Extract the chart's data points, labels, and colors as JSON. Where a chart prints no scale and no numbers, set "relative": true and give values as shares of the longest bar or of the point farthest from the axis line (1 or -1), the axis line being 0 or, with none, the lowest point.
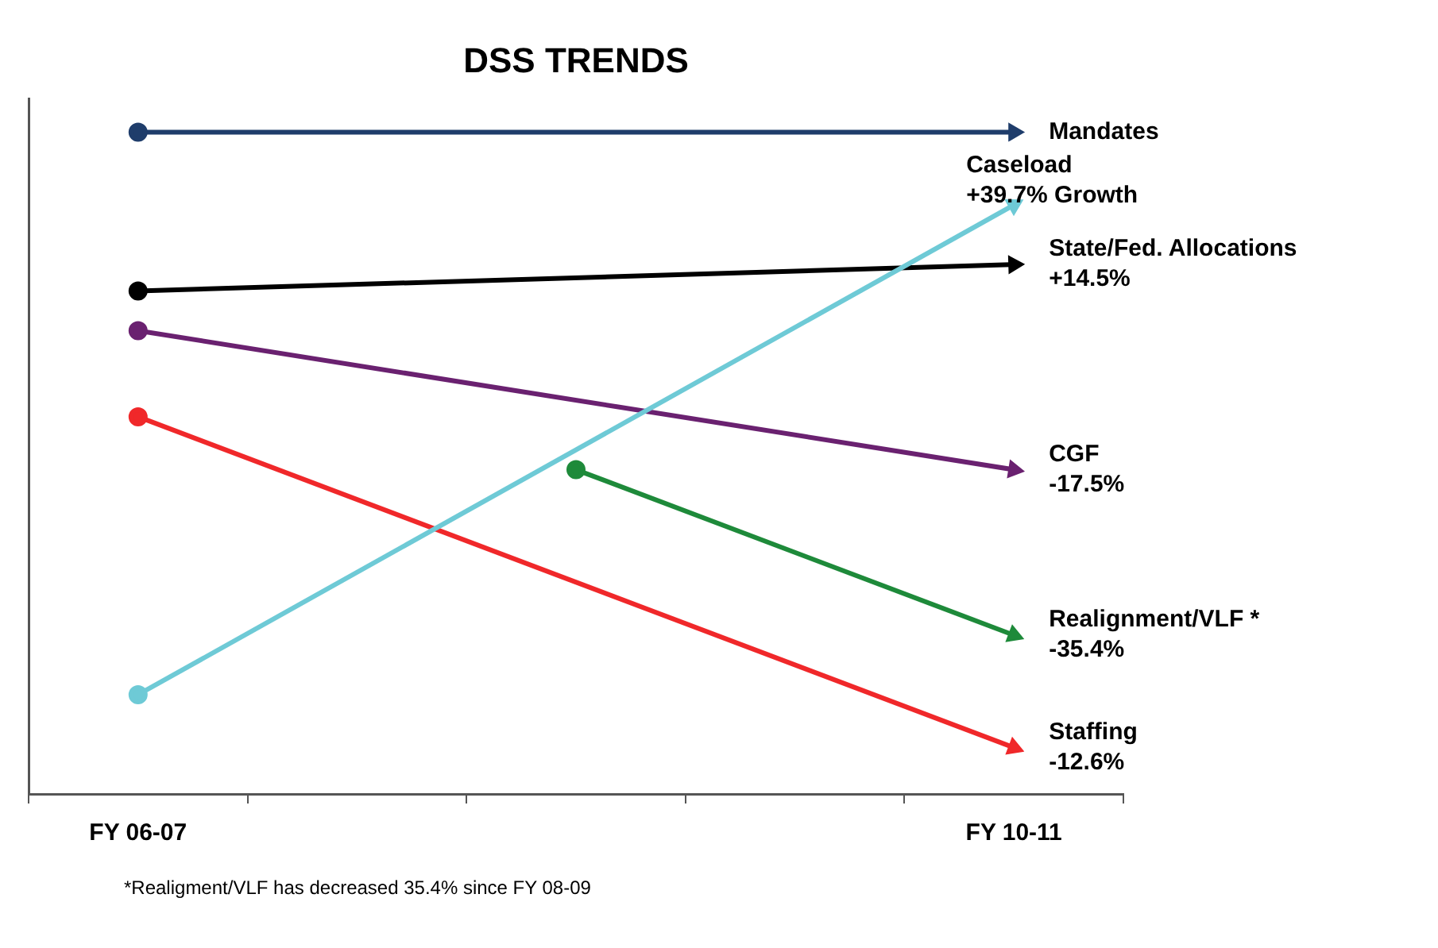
{
  "chart_data": {
    "type": "line",
    "title": "DSS TRENDS",
    "relative": true,
    "categories": [
      "FY 06-07",
      null,
      null,
      null,
      "FY 10-11"
    ],
    "series": [
      {
        "name": "Mandates",
        "color": "#1f3d6b",
        "values": [
          1,
          null,
          null,
          null,
          1
        ]
      },
      {
        "name": "Caseload +39.7% Growth",
        "color": "#6ecad6",
        "values": [
          0.15,
          null,
          null,
          null,
          0.89
        ]
      },
      {
        "name": "State/Fed. Allocations +14.5%",
        "color": "#000000",
        "values": [
          0.76,
          null,
          null,
          null,
          0.8
        ]
      },
      {
        "name": "CGF -17.5%",
        "color": "#6a2170",
        "values": [
          0.7,
          null,
          null,
          null,
          0.49
        ]
      },
      {
        "name": "Realignment/VLF * -35.4%",
        "color": "#1e8a3a",
        "values": [
          null,
          null,
          0.49,
          null,
          0.24
        ]
      },
      {
        "name": "Staffing -12.6%",
        "color": "#f0282a",
        "values": [
          0.57,
          null,
          null,
          null,
          0.07
        ]
      }
    ],
    "marker": "circle",
    "line_style": "solid",
    "grid": false,
    "legend": false,
    "annotations": [
      "*Realigment/VLF has decreased 35.4% since FY 08-09"
    ]
  }
}
